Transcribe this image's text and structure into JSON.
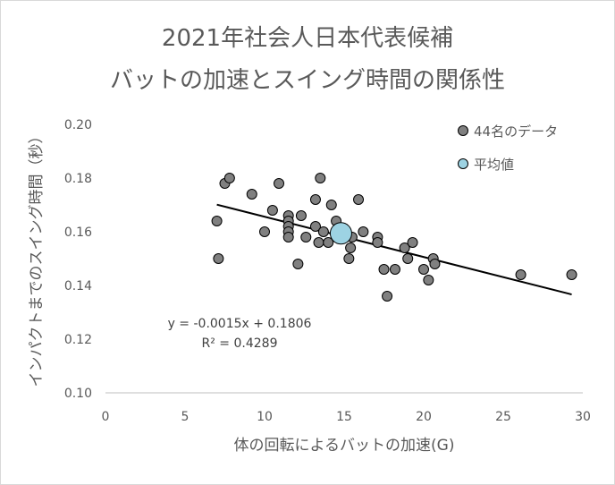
{
  "chart_data": {
    "type": "scatter",
    "title": "2021年社会人日本代表候補",
    "subtitle": "バットの加速とスイング時間の関係性",
    "xlabel": "体の回転によるバットの加速(G)",
    "ylabel": "インパクトまでのスイング時間（秒）",
    "xlim": [
      0,
      30
    ],
    "ylim": [
      0.1,
      0.2
    ],
    "x_ticks": [
      "0",
      "5",
      "10",
      "15",
      "20",
      "25",
      "30"
    ],
    "y_ticks": [
      "0.10",
      "0.12",
      "0.14",
      "0.16",
      "0.18",
      "0.20"
    ],
    "grid": false,
    "legend_position": "top-right",
    "series": [
      {
        "name": "44名のデータ",
        "color": "#808080",
        "points": [
          [
            7.0,
            0.164
          ],
          [
            7.1,
            0.15
          ],
          [
            7.5,
            0.178
          ],
          [
            7.8,
            0.18
          ],
          [
            9.2,
            0.174
          ],
          [
            10.0,
            0.16
          ],
          [
            10.5,
            0.168
          ],
          [
            10.9,
            0.178
          ],
          [
            11.5,
            0.166
          ],
          [
            11.5,
            0.164
          ],
          [
            11.5,
            0.162
          ],
          [
            11.5,
            0.16
          ],
          [
            11.5,
            0.158
          ],
          [
            12.1,
            0.148
          ],
          [
            12.3,
            0.166
          ],
          [
            12.6,
            0.158
          ],
          [
            13.2,
            0.172
          ],
          [
            13.2,
            0.162
          ],
          [
            13.4,
            0.156
          ],
          [
            13.5,
            0.18
          ],
          [
            13.7,
            0.16
          ],
          [
            14.0,
            0.156
          ],
          [
            14.2,
            0.17
          ],
          [
            14.5,
            0.164
          ],
          [
            15.3,
            0.15
          ],
          [
            15.4,
            0.154
          ],
          [
            15.5,
            0.158
          ],
          [
            15.9,
            0.172
          ],
          [
            16.2,
            0.16
          ],
          [
            17.1,
            0.158
          ],
          [
            17.1,
            0.156
          ],
          [
            17.5,
            0.146
          ],
          [
            17.7,
            0.136
          ],
          [
            18.2,
            0.146
          ],
          [
            18.8,
            0.154
          ],
          [
            19.0,
            0.15
          ],
          [
            19.3,
            0.156
          ],
          [
            20.0,
            0.146
          ],
          [
            20.3,
            0.142
          ],
          [
            20.6,
            0.15
          ],
          [
            20.7,
            0.148
          ],
          [
            26.1,
            0.144
          ],
          [
            29.3,
            0.144
          ],
          [
            14.7,
            0.158
          ]
        ]
      },
      {
        "name": "平均値",
        "color": "#9dd3e3",
        "points": [
          [
            14.8,
            0.1594
          ]
        ]
      }
    ],
    "trendline": {
      "slope": -0.0015,
      "intercept": 0.1806,
      "x_range": [
        7.0,
        29.3
      ],
      "equation": "y = -0.0015x + 0.1806",
      "r_squared_label": "R² = 0.4289"
    }
  }
}
